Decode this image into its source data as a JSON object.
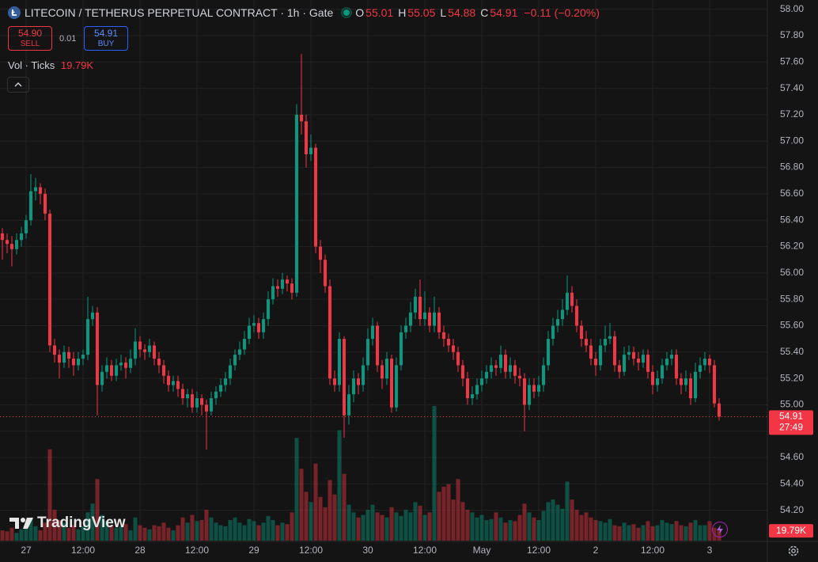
{
  "chart_data": {
    "type": "candlestick",
    "title": "LITECOIN / TETHERUS PERPETUAL CONTRACT · 1h · Gate",
    "ohlc_labels": [
      "O",
      "H",
      "L",
      "C"
    ],
    "change": "−0.11 (−0.20%)",
    "trade": {
      "sell_price": "54.90",
      "sell": "SELL",
      "spread": "0.01",
      "buy_price": "54.91",
      "buy": "BUY"
    },
    "volume_title": "Vol · Ticks",
    "volume_label": "19.79K",
    "countdown": "27:49",
    "brand": "TradingView",
    "up_color": "#089981",
    "down_color": "#f23645",
    "grid": true,
    "ylim": [
      53.97,
      58.07
    ],
    "yticks": [
      {
        "value": 58,
        "label": "58.00"
      },
      {
        "value": 57.8,
        "label": "57.80"
      },
      {
        "value": 57.6,
        "label": "57.60"
      },
      {
        "value": 57.4,
        "label": "57.40"
      },
      {
        "value": 57.2,
        "label": "57.20"
      },
      {
        "value": 57,
        "label": "57.00"
      },
      {
        "value": 56.8,
        "label": "56.80"
      },
      {
        "value": 56.6,
        "label": "56.60"
      },
      {
        "value": 56.4,
        "label": "56.40"
      },
      {
        "value": 56.2,
        "label": "56.20"
      },
      {
        "value": 56,
        "label": "56.00"
      },
      {
        "value": 55.8,
        "label": "55.80"
      },
      {
        "value": 55.6,
        "label": "55.60"
      },
      {
        "value": 55.4,
        "label": "55.40"
      },
      {
        "value": 55.2,
        "label": "55.20"
      },
      {
        "value": 55,
        "label": "55.00"
      },
      {
        "value": 54.8,
        "label": "54.80"
      },
      {
        "value": 54.6,
        "label": "54.60"
      },
      {
        "value": 54.4,
        "label": "54.40"
      },
      {
        "value": 54.2,
        "label": "54.20"
      }
    ],
    "categories": [
      null,
      null,
      null,
      null,
      null,
      "27",
      null,
      null,
      null,
      null,
      null,
      null,
      null,
      null,
      null,
      null,
      null,
      "12:00",
      null,
      null,
      null,
      null,
      null,
      null,
      null,
      null,
      null,
      null,
      null,
      "28",
      null,
      null,
      null,
      null,
      null,
      null,
      null,
      null,
      null,
      null,
      null,
      "12:00",
      null,
      null,
      null,
      null,
      null,
      null,
      null,
      null,
      null,
      null,
      null,
      "29",
      null,
      null,
      null,
      null,
      null,
      null,
      null,
      null,
      null,
      null,
      null,
      "12:00",
      null,
      null,
      null,
      null,
      null,
      null,
      null,
      null,
      null,
      null,
      null,
      "30",
      null,
      null,
      null,
      null,
      null,
      null,
      null,
      null,
      null,
      null,
      null,
      "12:00",
      null,
      null,
      null,
      null,
      null,
      null,
      null,
      null,
      null,
      null,
      null,
      "May",
      null,
      null,
      null,
      null,
      null,
      null,
      null,
      null,
      null,
      null,
      null,
      "12:00",
      null,
      null,
      null,
      null,
      null,
      null,
      null,
      null,
      null,
      null,
      null,
      "2",
      null,
      null,
      null,
      null,
      null,
      null,
      null,
      null,
      null,
      null,
      null,
      "12:00",
      null,
      null,
      null,
      null,
      null,
      null,
      null,
      null,
      null,
      null,
      null,
      "3",
      null,
      null
    ],
    "open": [
      56.3,
      56.25,
      56.22,
      56.18,
      56.25,
      56.3,
      56.4,
      56.62,
      56.65,
      56.6,
      56.45,
      55.45,
      55.38,
      55.32,
      55.4,
      55.35,
      55.3,
      55.35,
      55.38,
      55.65,
      55.7,
      55.15,
      55.25,
      55.3,
      55.22,
      55.3,
      55.32,
      55.28,
      55.35,
      55.48,
      55.42,
      55.4,
      55.45,
      55.35,
      55.3,
      55.22,
      55.15,
      55.18,
      55.12,
      55.05,
      55.08,
      54.98,
      55.05,
      55.0,
      54.95,
      55.05,
      55.1,
      55.15,
      55.2,
      55.3,
      55.38,
      55.42,
      55.5,
      55.6,
      55.62,
      55.55,
      55.65,
      55.8,
      55.9,
      55.88,
      55.95,
      55.92,
      55.85,
      57.2,
      57.15,
      56.9,
      56.95,
      56.2,
      56.1,
      55.9,
      55.2,
      55.15,
      55.5,
      54.92,
      55.08,
      55.2,
      55.15,
      55.3,
      55.5,
      55.6,
      55.3,
      55.2,
      55.35,
      54.98,
      55.3,
      55.55,
      55.6,
      55.7,
      55.82,
      55.65,
      55.7,
      55.6,
      55.7,
      55.55,
      55.5,
      55.45,
      55.4,
      55.3,
      55.2,
      55.05,
      55.08,
      55.15,
      55.2,
      55.25,
      55.3,
      55.28,
      55.38,
      55.25,
      55.3,
      55.22,
      55.2,
      55.0,
      55.15,
      55.1,
      55.15,
      55.3,
      55.5,
      55.6,
      55.65,
      55.72,
      55.85,
      55.75,
      55.6,
      55.5,
      55.45,
      55.35,
      55.3,
      55.45,
      55.5,
      55.52,
      55.3,
      55.25,
      55.38,
      55.4,
      55.35,
      55.32,
      55.38,
      55.25,
      55.15,
      55.2,
      55.3,
      55.35,
      55.38,
      55.2,
      55.15,
      55.2,
      55.05,
      55.25,
      55.3,
      55.35,
      55.3,
      55.01
    ],
    "high": [
      56.34,
      56.3,
      56.28,
      56.3,
      56.35,
      56.44,
      56.75,
      56.72,
      56.68,
      56.64,
      56.48,
      55.5,
      55.42,
      55.45,
      55.44,
      55.4,
      55.4,
      55.42,
      55.82,
      55.75,
      55.74,
      55.3,
      55.36,
      55.34,
      55.35,
      55.38,
      55.36,
      55.42,
      55.58,
      55.52,
      55.46,
      55.5,
      55.48,
      55.4,
      55.34,
      55.26,
      55.22,
      55.22,
      55.16,
      55.12,
      55.12,
      55.1,
      55.08,
      55.04,
      55.1,
      55.14,
      55.2,
      55.25,
      55.35,
      55.42,
      55.48,
      55.56,
      55.66,
      55.68,
      55.66,
      55.7,
      55.86,
      55.96,
      55.95,
      56.0,
      55.98,
      55.96,
      57.28,
      57.66,
      57.2,
      57.05,
      56.98,
      56.25,
      56.14,
      55.95,
      55.26,
      55.55,
      55.52,
      55.15,
      55.26,
      55.24,
      55.36,
      55.58,
      55.66,
      55.63,
      55.34,
      55.4,
      55.38,
      55.36,
      55.6,
      55.66,
      55.78,
      55.88,
      55.95,
      55.86,
      55.74,
      55.82,
      55.74,
      55.6,
      55.54,
      55.5,
      55.44,
      55.34,
      55.25,
      55.14,
      55.2,
      55.26,
      55.3,
      55.36,
      55.34,
      55.45,
      55.42,
      55.36,
      55.34,
      55.28,
      55.24,
      55.2,
      55.2,
      55.22,
      55.36,
      55.56,
      55.66,
      55.72,
      55.8,
      55.98,
      55.9,
      55.8,
      55.64,
      55.56,
      55.5,
      55.4,
      55.5,
      55.6,
      55.62,
      55.56,
      55.34,
      55.44,
      55.45,
      55.44,
      55.4,
      55.42,
      55.42,
      55.3,
      55.26,
      55.35,
      55.4,
      55.42,
      55.42,
      55.24,
      55.26,
      55.24,
      55.32,
      55.36,
      55.4,
      55.38,
      55.34,
      55.05
    ],
    "low": [
      56.1,
      56.15,
      56.05,
      56.14,
      56.2,
      56.26,
      56.36,
      56.55,
      56.52,
      56.4,
      55.4,
      55.32,
      55.2,
      55.28,
      55.28,
      55.22,
      55.26,
      55.3,
      55.34,
      55.6,
      54.92,
      55.1,
      55.2,
      55.18,
      55.18,
      55.26,
      55.2,
      55.24,
      55.3,
      55.36,
      55.34,
      55.36,
      55.3,
      55.24,
      55.16,
      55.1,
      55.1,
      55.06,
      55.0,
      54.98,
      54.94,
      54.94,
      54.92,
      54.66,
      54.92,
      55.0,
      55.06,
      55.1,
      55.15,
      55.26,
      55.34,
      55.38,
      55.46,
      55.55,
      55.5,
      55.5,
      55.6,
      55.76,
      55.82,
      55.84,
      55.86,
      55.8,
      55.82,
      57.05,
      56.8,
      56.85,
      56.15,
      56.0,
      55.85,
      55.15,
      55.1,
      55.1,
      54.75,
      54.85,
      55.02,
      55.08,
      55.1,
      55.26,
      55.45,
      55.25,
      55.12,
      55.15,
      54.94,
      54.95,
      55.26,
      55.5,
      55.55,
      55.65,
      55.6,
      55.6,
      55.55,
      55.55,
      55.5,
      55.44,
      55.4,
      55.34,
      55.25,
      55.14,
      55.0,
      55.0,
      55.04,
      55.1,
      55.16,
      55.2,
      55.22,
      55.24,
      55.2,
      55.2,
      55.16,
      55.14,
      54.8,
      54.96,
      55.05,
      55.06,
      55.1,
      55.26,
      55.45,
      55.55,
      55.6,
      55.68,
      55.7,
      55.55,
      55.44,
      55.4,
      55.3,
      55.22,
      55.26,
      55.4,
      55.46,
      55.25,
      55.2,
      55.22,
      55.34,
      55.3,
      55.26,
      55.28,
      55.2,
      55.08,
      55.1,
      55.16,
      55.26,
      55.3,
      55.15,
      55.08,
      55.1,
      55.0,
      55.02,
      55.2,
      55.26,
      55.24,
      54.98,
      54.88
    ],
    "close": [
      56.25,
      56.22,
      56.18,
      56.25,
      56.3,
      56.4,
      56.62,
      56.65,
      56.6,
      56.45,
      55.45,
      55.38,
      55.32,
      55.4,
      55.35,
      55.3,
      55.35,
      55.38,
      55.65,
      55.7,
      55.15,
      55.25,
      55.3,
      55.22,
      55.3,
      55.32,
      55.28,
      55.35,
      55.48,
      55.42,
      55.4,
      55.45,
      55.35,
      55.3,
      55.22,
      55.15,
      55.18,
      55.12,
      55.05,
      55.08,
      54.98,
      55.05,
      55.0,
      54.95,
      55.05,
      55.1,
      55.15,
      55.2,
      55.3,
      55.38,
      55.42,
      55.5,
      55.6,
      55.62,
      55.55,
      55.65,
      55.8,
      55.9,
      55.88,
      55.95,
      55.92,
      55.85,
      57.2,
      57.15,
      56.9,
      56.95,
      56.2,
      56.1,
      55.9,
      55.2,
      55.15,
      55.5,
      54.92,
      55.08,
      55.2,
      55.15,
      55.3,
      55.5,
      55.6,
      55.3,
      55.2,
      55.35,
      54.98,
      55.3,
      55.55,
      55.6,
      55.7,
      55.82,
      55.65,
      55.7,
      55.6,
      55.7,
      55.55,
      55.5,
      55.45,
      55.4,
      55.3,
      55.2,
      55.05,
      55.08,
      55.15,
      55.2,
      55.25,
      55.3,
      55.28,
      55.38,
      55.25,
      55.3,
      55.22,
      55.2,
      55.0,
      55.15,
      55.1,
      55.15,
      55.3,
      55.5,
      55.6,
      55.65,
      55.72,
      55.85,
      55.75,
      55.6,
      55.5,
      55.45,
      55.35,
      55.3,
      55.45,
      55.5,
      55.52,
      55.3,
      55.25,
      55.38,
      55.4,
      55.35,
      55.32,
      55.38,
      55.25,
      55.15,
      55.2,
      55.3,
      55.35,
      55.38,
      55.2,
      55.15,
      55.2,
      55.05,
      55.25,
      55.3,
      55.35,
      55.3,
      55.01,
      54.91
    ],
    "volume": [
      20000,
      18000,
      25000,
      15000,
      22000,
      30000,
      45000,
      28000,
      20000,
      35000,
      178000,
      60000,
      40000,
      35000,
      25000,
      30000,
      22000,
      28000,
      55000,
      72000,
      120000,
      50000,
      38000,
      30000,
      25000,
      28000,
      32000,
      20000,
      45000,
      30000,
      25000,
      22000,
      30000,
      28000,
      35000,
      25000,
      20000,
      30000,
      45000,
      35000,
      50000,
      38000,
      40000,
      60000,
      45000,
      35000,
      30000,
      28000,
      40000,
      45000,
      35000,
      30000,
      42000,
      38000,
      30000,
      35000,
      48000,
      40000,
      30000,
      35000,
      32000,
      55000,
      200000,
      140000,
      95000,
      75000,
      150000,
      85000,
      65000,
      118000,
      90000,
      215000,
      130000,
      70000,
      55000,
      45000,
      50000,
      60000,
      70000,
      55000,
      50000,
      45000,
      65000,
      55000,
      48000,
      60000,
      55000,
      75000,
      68000,
      50000,
      55000,
      262000,
      95000,
      105000,
      110000,
      80000,
      120000,
      75000,
      60000,
      55000,
      45000,
      50000,
      40000,
      42000,
      55000,
      45000,
      35000,
      40000,
      38000,
      50000,
      72000,
      55000,
      45000,
      40000,
      58000,
      75000,
      80000,
      70000,
      62000,
      115000,
      80000,
      60000,
      50000,
      55000,
      45000,
      40000,
      38000,
      35000,
      42000,
      30000,
      28000,
      35000,
      30000,
      32000,
      25000,
      30000,
      38000,
      28000,
      30000,
      40000,
      35000,
      32000,
      38000,
      30000,
      28000,
      35000,
      40000,
      30000,
      30000,
      38000,
      25000,
      19790
    ]
  }
}
